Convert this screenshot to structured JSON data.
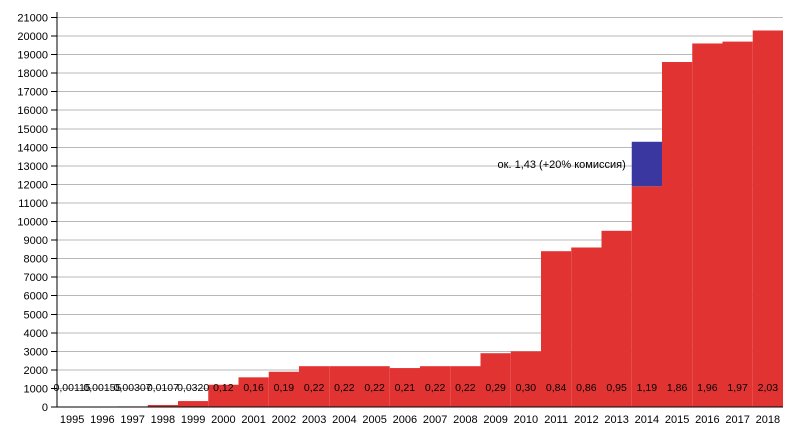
{
  "chart_data": {
    "type": "bar",
    "title": "",
    "xlabel": "",
    "ylabel": "",
    "years": [
      "1995",
      "1996",
      "1997",
      "1998",
      "1999",
      "2000",
      "2001",
      "2002",
      "2003",
      "2004",
      "2005",
      "2006",
      "2007",
      "2008",
      "2009",
      "2010",
      "2011",
      "2012",
      "2013",
      "2014",
      "2015",
      "2016",
      "2017",
      "2018"
    ],
    "bar_value_labels": [
      "0,00115",
      "0,00155",
      "0,00307",
      "0,0107",
      "0,0320",
      "0,12",
      "0,16",
      "0,19",
      "0,22",
      "0,22",
      "0,22",
      "0,21",
      "0,22",
      "0,22",
      "0,29",
      "0,30",
      "0,84",
      "0,86",
      "0,95",
      "1,19",
      "1,86",
      "1,96",
      "1,97",
      "2,03"
    ],
    "values_axis_units": [
      11.5,
      15.5,
      30.7,
      107,
      320,
      1200,
      1600,
      1900,
      2200,
      2200,
      2200,
      2100,
      2200,
      2200,
      2900,
      3000,
      8400,
      8600,
      9500,
      11900,
      18600,
      19600,
      19700,
      20300
    ],
    "ylim": [
      0,
      21000
    ],
    "ytick_step": 1000,
    "grid": "horizontal",
    "legend": "none",
    "annotation": {
      "text": "ок. 1,43 (+20% комиссия)",
      "year": "2014",
      "overlay_from": 11900,
      "overlay_to": 14300
    },
    "colors": {
      "bar": "#e23333",
      "overlay": "#3a38a0",
      "grid": "#b8b8b8",
      "axis": "#000000",
      "text": "#000000"
    }
  }
}
